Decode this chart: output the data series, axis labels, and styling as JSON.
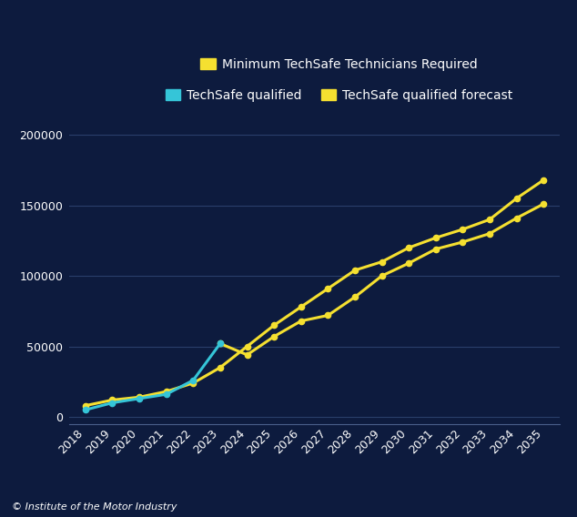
{
  "background_color": "#0d1b3e",
  "years": [
    2018,
    2019,
    2020,
    2021,
    2022,
    2023,
    2024,
    2025,
    2026,
    2027,
    2028,
    2029,
    2030,
    2031,
    2032,
    2033,
    2034,
    2035
  ],
  "minimum_required": [
    8000,
    12000,
    14000,
    18000,
    24000,
    35000,
    50000,
    65000,
    78000,
    91000,
    104000,
    110000,
    120000,
    127000,
    133000,
    140000,
    155000,
    168000
  ],
  "techsafe_qualified": [
    5000,
    10000,
    13000,
    16000,
    26000,
    52000,
    null,
    null,
    null,
    null,
    null,
    null,
    null,
    null,
    null,
    null,
    null,
    null
  ],
  "techsafe_forecast": [
    null,
    null,
    null,
    null,
    null,
    52000,
    44000,
    57000,
    68000,
    72000,
    85000,
    100000,
    109000,
    119000,
    124000,
    130000,
    141000,
    151000
  ],
  "min_req_color": "#f5e030",
  "techsafe_qualified_color": "#35c5d8",
  "techsafe_forecast_color": "#f5e030",
  "grid_color": "#2a3f6a",
  "text_color": "#ffffff",
  "ylim": [
    -5000,
    215000
  ],
  "yticks": [
    0,
    50000,
    100000,
    150000,
    200000
  ],
  "legend_labels": [
    "Minimum TechSafe Technicians Required",
    "TechSafe qualified",
    "TechSafe qualified forecast"
  ],
  "footer": "© Institute of the Motor Industry",
  "tick_fontsize": 9,
  "legend_fontsize": 10
}
